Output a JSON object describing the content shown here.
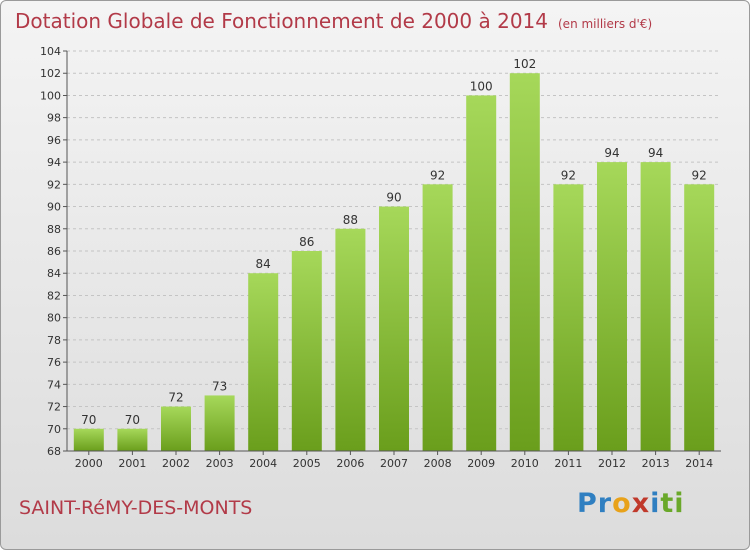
{
  "title": "Dotation Globale de Fonctionnement de 2000 à 2014",
  "unit": "(en milliers d'€)",
  "commune": "SAINT-RéMY-DES-MONTS",
  "logo": {
    "letters": [
      "P",
      "r",
      "o",
      "x",
      "i",
      "t",
      "i"
    ],
    "colors": [
      "#2f7fc1",
      "#2f7fc1",
      "#e8a21a",
      "#c0392b",
      "#2f7fc1",
      "#6aa82a",
      "#6aa82a"
    ]
  },
  "colors": {
    "bar_light": "#a6d85a",
    "bar_dark": "#6a9e1c",
    "title": "#b23a48"
  },
  "chart_data": {
    "type": "bar",
    "title": "Dotation Globale de Fonctionnement de 2000 à 2014",
    "subtitle": "(en milliers d'€)",
    "xlabel": "",
    "ylabel": "",
    "categories": [
      "2000",
      "2001",
      "2002",
      "2003",
      "2004",
      "2005",
      "2006",
      "2007",
      "2008",
      "2009",
      "2010",
      "2011",
      "2012",
      "2013",
      "2014"
    ],
    "values": [
      70,
      70,
      72,
      73,
      84,
      86,
      88,
      90,
      92,
      100,
      102,
      92,
      94,
      94,
      92
    ],
    "ylim": [
      68,
      104
    ],
    "yticks": [
      68,
      70,
      72,
      74,
      76,
      78,
      80,
      82,
      84,
      86,
      88,
      90,
      92,
      94,
      96,
      98,
      100,
      102,
      104
    ],
    "grid": true,
    "legend": "none"
  }
}
